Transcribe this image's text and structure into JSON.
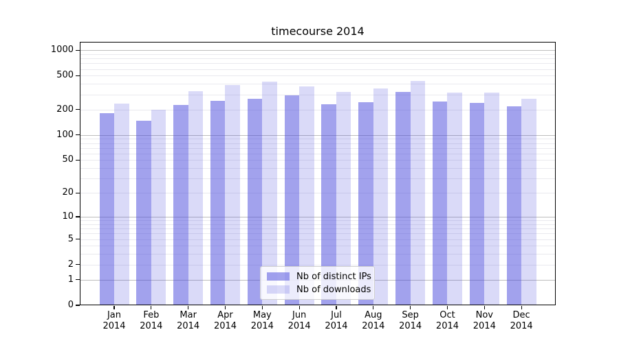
{
  "chart_data": {
    "type": "bar",
    "title": "timecourse 2014",
    "categories": [
      "Jan",
      "Feb",
      "Mar",
      "Apr",
      "May",
      "Jun",
      "Jul",
      "Aug",
      "Sep",
      "Oct",
      "Nov",
      "Dec"
    ],
    "year_suffix": "2014",
    "series": [
      {
        "name": "Nb of distinct IPs",
        "color": "rgba(70,70,220,0.5)",
        "values": [
          180,
          148,
          227,
          253,
          266,
          294,
          230,
          246,
          320,
          247,
          240,
          220
        ]
      },
      {
        "name": "Nb of downloads",
        "color": "rgba(70,70,220,0.2)",
        "values": [
          236,
          198,
          329,
          387,
          427,
          375,
          323,
          354,
          433,
          319,
          319,
          270
        ]
      }
    ],
    "yscale": {
      "type": "log1p",
      "ylim": [
        0,
        1256
      ]
    },
    "y_ticks": [
      1000,
      500,
      200,
      100,
      50,
      20,
      10,
      5,
      2,
      1,
      0
    ],
    "grid": {
      "major_values": [
        1000,
        100,
        10,
        1
      ],
      "minor_values": [
        900,
        800,
        700,
        600,
        500,
        400,
        300,
        200,
        90,
        80,
        70,
        60,
        50,
        40,
        30,
        20,
        9,
        8,
        7,
        6,
        5,
        4,
        3,
        2
      ],
      "major_color": "#bdbdbd",
      "minor_color": "#e9e9ee"
    },
    "legend": {
      "position": "lower center"
    },
    "colors": {
      "axis": "#000000",
      "text": "#000000",
      "background": "#ffffff"
    }
  }
}
